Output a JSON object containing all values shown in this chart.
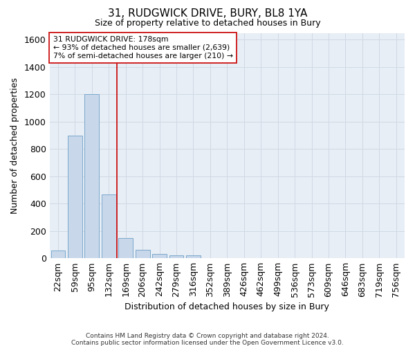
{
  "title": "31, RUDGWICK DRIVE, BURY, BL8 1YA",
  "subtitle": "Size of property relative to detached houses in Bury",
  "xlabel": "Distribution of detached houses by size in Bury",
  "ylabel": "Number of detached properties",
  "footnote1": "Contains HM Land Registry data © Crown copyright and database right 2024.",
  "footnote2": "Contains public sector information licensed under the Open Government Licence v3.0.",
  "bar_labels": [
    "22sqm",
    "59sqm",
    "95sqm",
    "132sqm",
    "169sqm",
    "206sqm",
    "242sqm",
    "279sqm",
    "316sqm",
    "352sqm",
    "389sqm",
    "426sqm",
    "462sqm",
    "499sqm",
    "536sqm",
    "573sqm",
    "609sqm",
    "646sqm",
    "683sqm",
    "719sqm",
    "756sqm"
  ],
  "bar_values": [
    55,
    900,
    1200,
    470,
    150,
    60,
    30,
    20,
    20,
    0,
    0,
    0,
    0,
    0,
    0,
    0,
    0,
    0,
    0,
    0,
    0
  ],
  "bar_color": "#c8d8ea",
  "bar_edge_color": "#7aa8cc",
  "grid_color": "#d0d8e4",
  "bg_color": "#e8eef5",
  "fig_bg_color": "#ffffff",
  "vline_color": "#cc1111",
  "vline_x_pos": 3.5,
  "annotation_line1": "31 RUDGWICK DRIVE: 178sqm",
  "annotation_line2": "← 93% of detached houses are smaller (2,639)",
  "annotation_line3": "7% of semi-detached houses are larger (210) →",
  "annotation_box_color": "#ffffff",
  "annotation_box_edge": "#cc1111",
  "ylim_max": 1650,
  "yticks": [
    0,
    200,
    400,
    600,
    800,
    1000,
    1200,
    1400,
    1600
  ]
}
